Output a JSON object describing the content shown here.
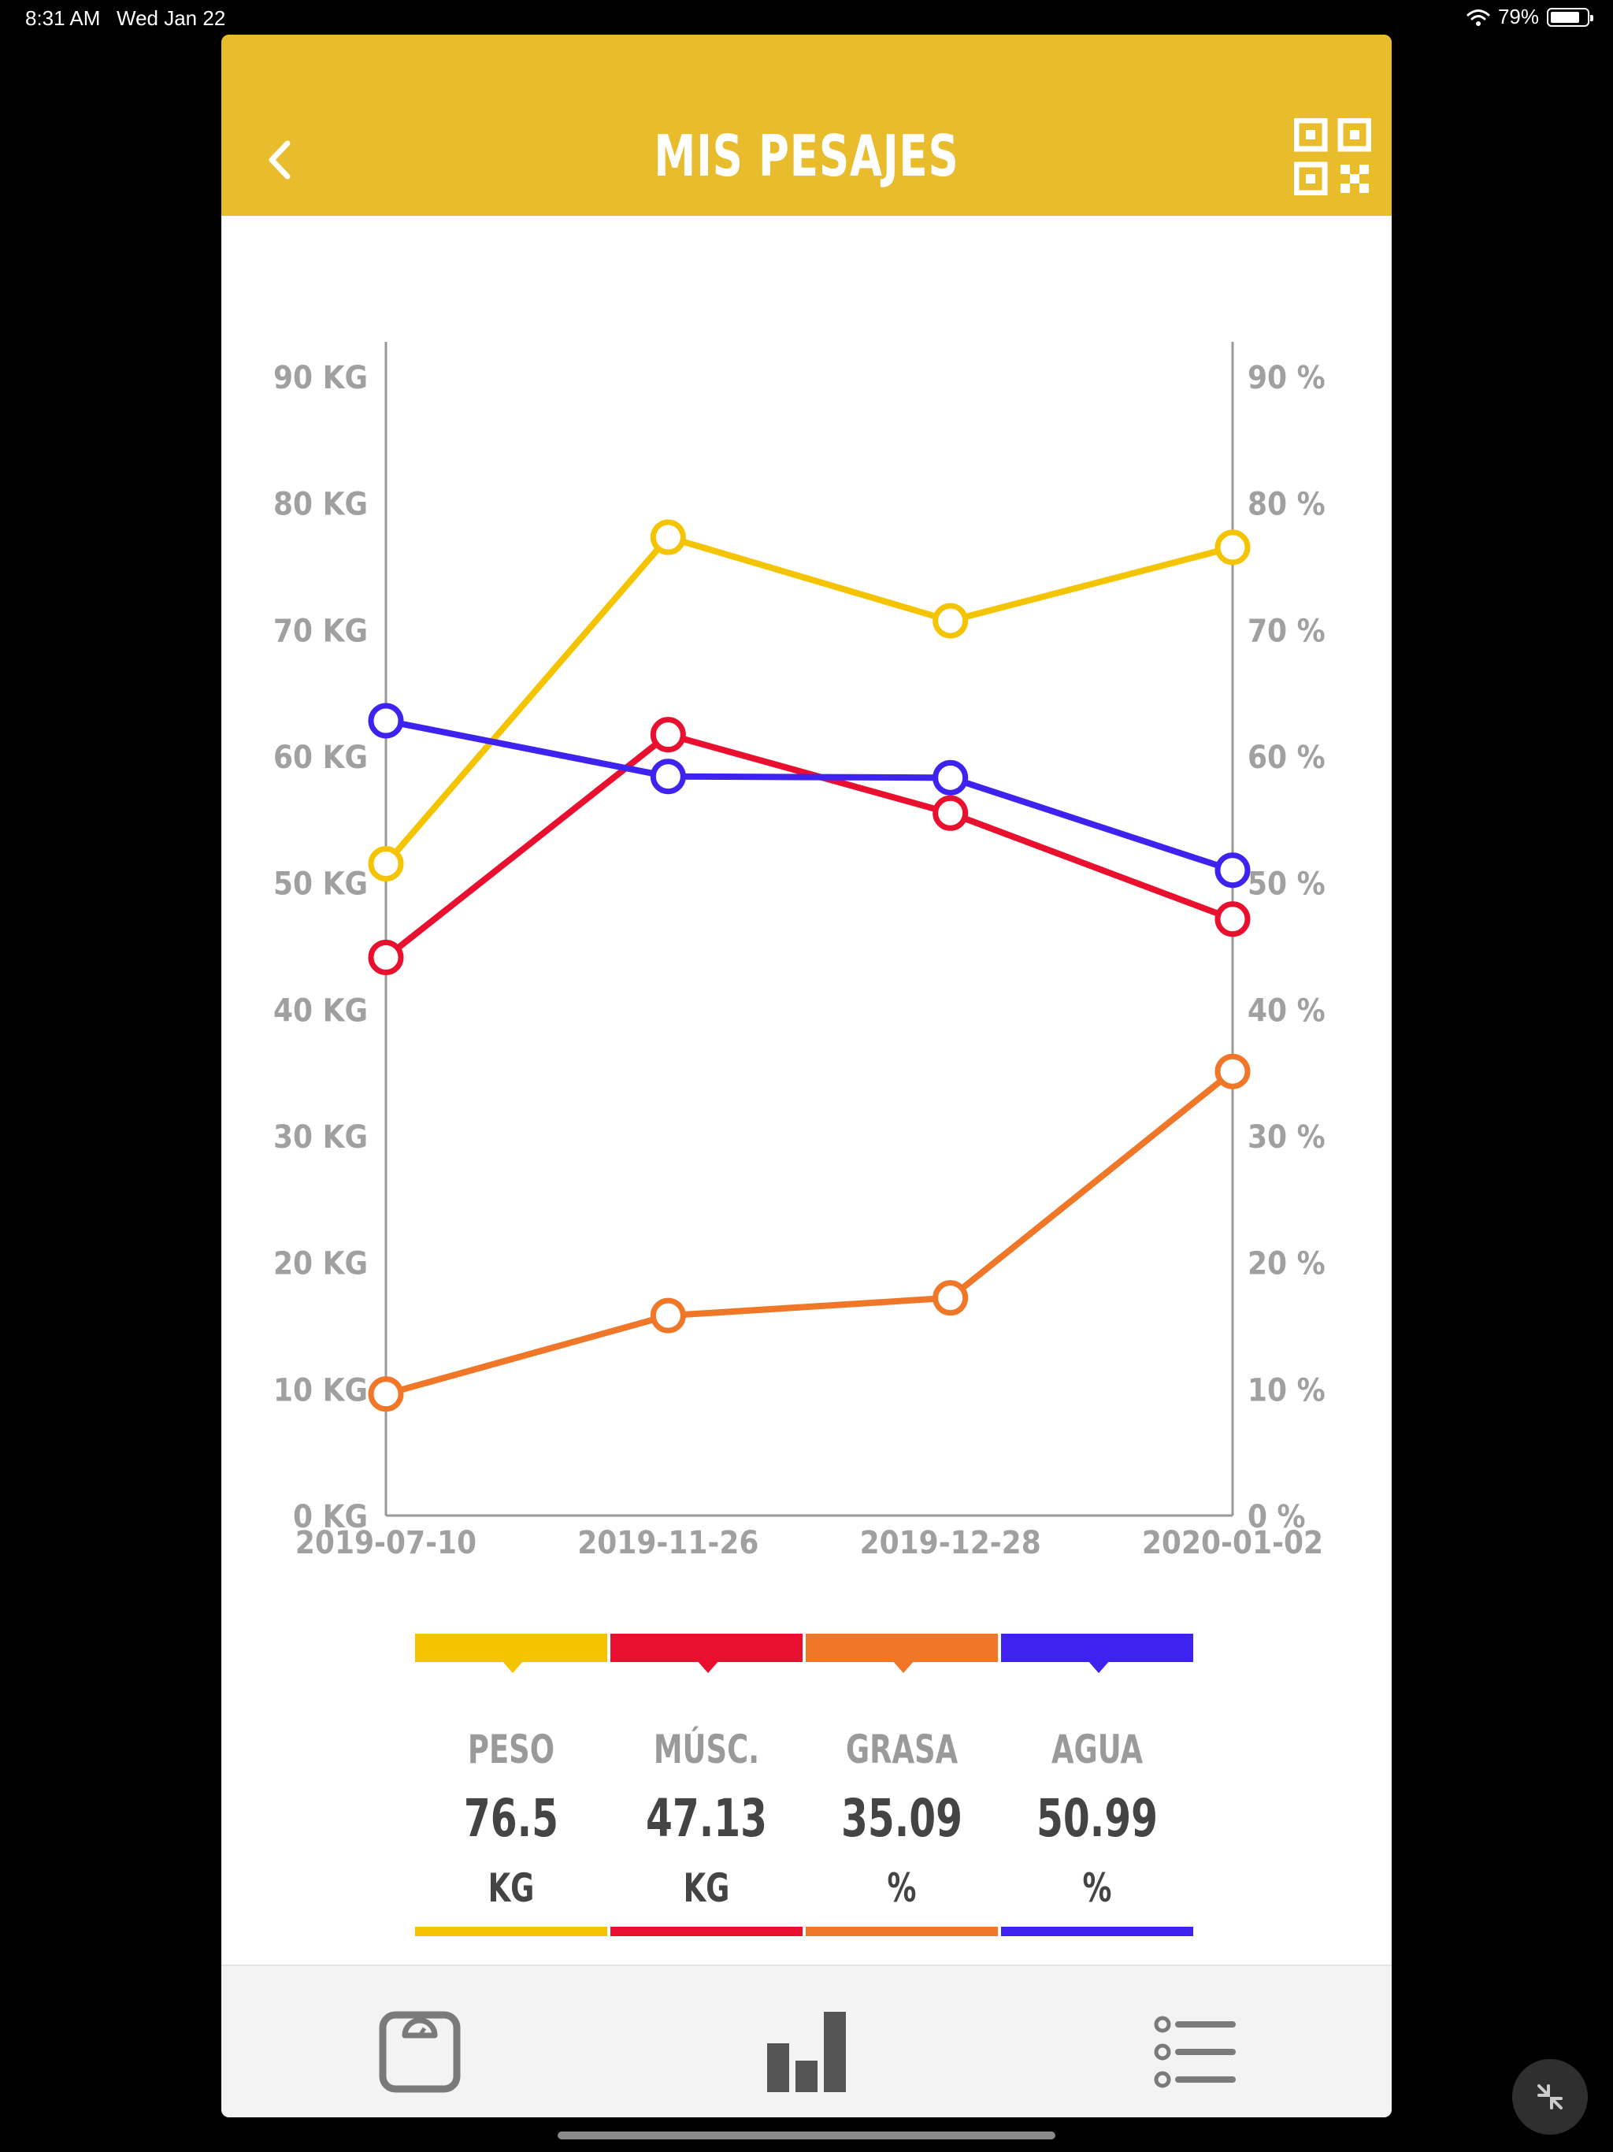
{
  "status_bar": {
    "time": "8:31 AM",
    "date": "Wed Jan 22",
    "battery": "79%"
  },
  "header": {
    "title": "MIS PESAJES"
  },
  "icons": {
    "back": "chevron-left-icon",
    "qr": "qr-code-icon",
    "scale": "scale-icon",
    "chart": "bar-chart-icon",
    "list": "list-icon"
  },
  "colors": {
    "header": "#E8BC2C",
    "peso": "#F5C400",
    "musculo": "#E8102E",
    "grasa": "#F07628",
    "agua": "#3E22F0",
    "axis": "#999999"
  },
  "chart_data": {
    "type": "line",
    "categories": [
      "2019-07-10",
      "2019-11-26",
      "2019-12-28",
      "2020-01-02"
    ],
    "left_axis": {
      "unit": "KG",
      "ylim": [
        0,
        90
      ],
      "ticks": [
        "0 KG",
        "10 KG",
        "20 KG",
        "30 KG",
        "40 KG",
        "50 KG",
        "60 KG",
        "70 KG",
        "80 KG",
        "90 KG"
      ]
    },
    "right_axis": {
      "unit": "%",
      "ylim": [
        0,
        90
      ],
      "ticks": [
        "0 %",
        "10 %",
        "20 %",
        "30 %",
        "40 %",
        "50 %",
        "60 %",
        "70 %",
        "80 %",
        "90 %"
      ]
    },
    "series": [
      {
        "name": "PESO",
        "color": "#F5C400",
        "values": [
          51.5,
          77.3,
          70.7,
          76.5
        ]
      },
      {
        "name": "MÚSC.",
        "color": "#E8102E",
        "values": [
          44.1,
          61.7,
          55.5,
          47.13
        ]
      },
      {
        "name": "GRASA",
        "color": "#F07628",
        "values": [
          9.6,
          15.8,
          17.2,
          35.09
        ]
      },
      {
        "name": "AGUA",
        "color": "#3E22F0",
        "values": [
          62.8,
          58.4,
          58.3,
          50.99
        ]
      }
    ]
  },
  "legend": [
    {
      "label": "PESO",
      "value": "76.5",
      "unit": "KG"
    },
    {
      "label": "MÚSC.",
      "value": "47.13",
      "unit": "KG"
    },
    {
      "label": "GRASA",
      "value": "35.09",
      "unit": "%"
    },
    {
      "label": "AGUA",
      "value": "50.99",
      "unit": "%"
    }
  ]
}
